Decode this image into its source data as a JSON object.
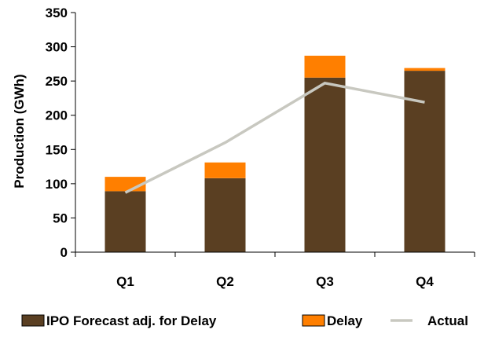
{
  "chart_data": {
    "type": "bar",
    "stacked": true,
    "categories": [
      "Q1",
      "Q2",
      "Q3",
      "Q4"
    ],
    "series": [
      {
        "name": "IPO Forecast adj. for Delay",
        "type": "bar",
        "color": "#5A3F22",
        "values": [
          89,
          108,
          255,
          265
        ]
      },
      {
        "name": "Delay",
        "type": "bar",
        "color": "#FF7F00",
        "values": [
          21,
          23,
          32,
          4
        ]
      },
      {
        "name": "Actual",
        "type": "line",
        "color": "#C8C8C0",
        "values": [
          87,
          160,
          247,
          219
        ]
      }
    ],
    "title": "",
    "xlabel": "",
    "ylabel": "Production (GWh)",
    "ylim": [
      0,
      350
    ],
    "yticks": [
      0,
      50,
      100,
      150,
      200,
      250,
      300,
      350
    ],
    "grid": false,
    "legend": "bottom"
  }
}
